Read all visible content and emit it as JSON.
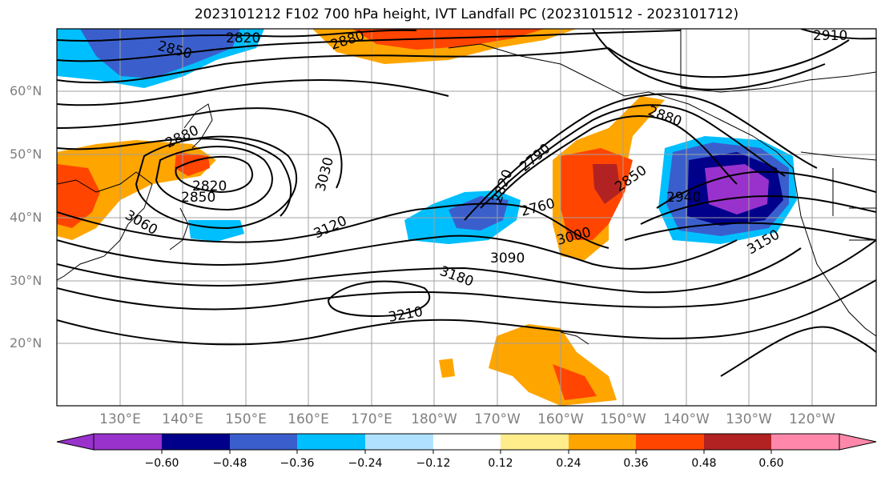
{
  "title": "2023101212 F102 700 hPa height, IVT Landfall PC (2023101512 - 2023101712)",
  "map": {
    "lat_labels": [
      "60°N",
      "50°N",
      "40°N",
      "30°N",
      "20°N"
    ],
    "lon_labels": [
      "130°E",
      "140°E",
      "150°E",
      "160°E",
      "170°E",
      "180°W",
      "170°W",
      "160°W",
      "150°W",
      "140°W",
      "130°W",
      "120°W"
    ],
    "contour_labels": [
      "2820",
      "2850",
      "2880",
      "2910",
      "2880",
      "2880",
      "2820",
      "2850",
      "3030",
      "3060",
      "3120",
      "2820",
      "2790",
      "2760",
      "2850",
      "2940",
      "3000",
      "3090",
      "3180",
      "3150",
      "3210"
    ],
    "land_color": "#000000",
    "contour_color": "#000000"
  },
  "colorbar": {
    "tick_labels": [
      "−0.60",
      "−0.48",
      "−0.36",
      "−0.24",
      "−0.12",
      "0.12",
      "0.24",
      "0.36",
      "0.48",
      "0.60"
    ],
    "colors": [
      "#9932cc",
      "#00008b",
      "#3a5fcd",
      "#00bfff",
      "#b0e2ff",
      "#ffffff",
      "#ffec8b",
      "#ffa500",
      "#ff4500",
      "#b22222",
      "#ff88aa"
    ]
  }
}
